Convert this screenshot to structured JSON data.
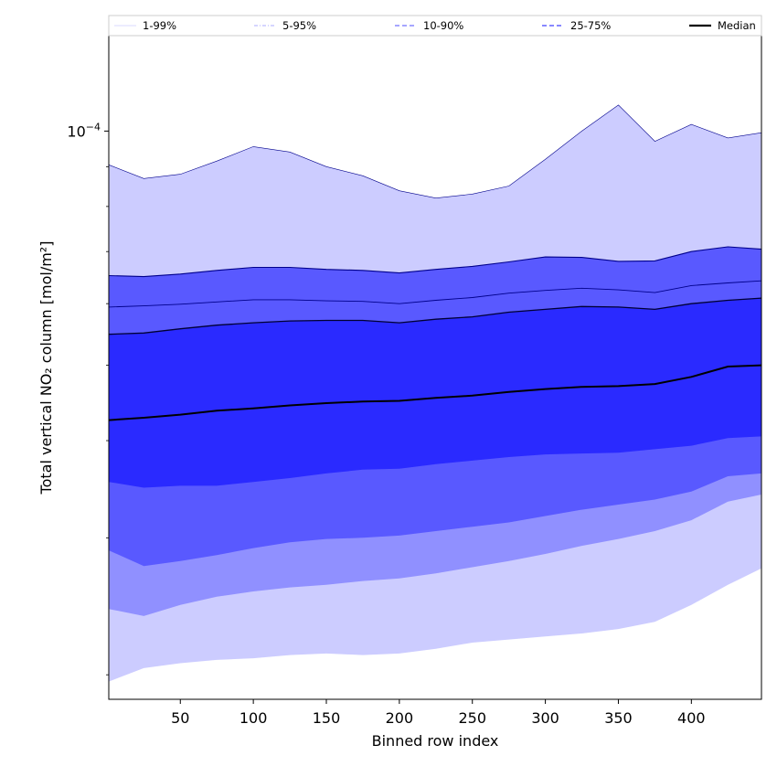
{
  "chart_data": {
    "type": "area",
    "xlabel": "Binned row index",
    "ylabel": "Total vertical NO₂ column [mol/m²]",
    "y_scale": "log",
    "xlim": [
      1,
      448
    ],
    "ylim": [
      1.86e-05,
      0.000133
    ],
    "x_ticks": [
      50,
      100,
      150,
      200,
      250,
      300,
      350,
      400
    ],
    "y_major_tick": {
      "value": 0.0001,
      "label_base": "10",
      "label_exp": "−4"
    },
    "legend_position": "top",
    "colors": {
      "band_1_99": "#ccccff",
      "band_5_95": "#9090ff",
      "band_10_90": "#5959ff",
      "band_25_75": "#2a2aff",
      "median": "#000000",
      "edge": "#00008b"
    },
    "x": [
      1,
      25,
      50,
      75,
      100,
      125,
      150,
      175,
      200,
      225,
      250,
      275,
      300,
      325,
      350,
      375,
      400,
      425,
      448
    ],
    "series": [
      {
        "name": "Median",
        "role": "median",
        "values": [
          4.25e-05,
          4.28e-05,
          4.32e-05,
          4.37e-05,
          4.4e-05,
          4.44e-05,
          4.47e-05,
          4.49e-05,
          4.5e-05,
          4.54e-05,
          4.57e-05,
          4.62e-05,
          4.66e-05,
          4.69e-05,
          4.7e-05,
          4.73e-05,
          4.83e-05,
          4.98e-05,
          5e-05
        ]
      },
      {
        "name": "25-75%",
        "role": "band",
        "lower": [
          3.54e-05,
          3.48e-05,
          3.5e-05,
          3.5e-05,
          3.54e-05,
          3.58e-05,
          3.63e-05,
          3.67e-05,
          3.68e-05,
          3.73e-05,
          3.77e-05,
          3.81e-05,
          3.84e-05,
          3.85e-05,
          3.86e-05,
          3.9e-05,
          3.94e-05,
          4.03e-05,
          4.05e-05
        ],
        "upper": [
          5.48e-05,
          5.5e-05,
          5.57e-05,
          5.63e-05,
          5.67e-05,
          5.7e-05,
          5.71e-05,
          5.71e-05,
          5.67e-05,
          5.73e-05,
          5.77e-05,
          5.85e-05,
          5.9e-05,
          5.95e-05,
          5.94e-05,
          5.9e-05,
          6e-05,
          6.06e-05,
          6.1e-05
        ]
      },
      {
        "name": "10-90%",
        "role": "band",
        "lower": [
          2.89e-05,
          2.76e-05,
          2.8e-05,
          2.85e-05,
          2.91e-05,
          2.96e-05,
          2.99e-05,
          3e-05,
          3.02e-05,
          3.06e-05,
          3.1e-05,
          3.14e-05,
          3.2e-05,
          3.26e-05,
          3.31e-05,
          3.36e-05,
          3.44e-05,
          3.6e-05,
          3.63e-05
        ]
      },
      {
        "name": "5-95%",
        "role": "band",
        "lower": [
          2.43e-05,
          2.38e-05,
          2.46e-05,
          2.52e-05,
          2.56e-05,
          2.59e-05,
          2.61e-05,
          2.64e-05,
          2.66e-05,
          2.7e-05,
          2.75e-05,
          2.8e-05,
          2.86e-05,
          2.93e-05,
          2.99e-05,
          3.06e-05,
          3.16e-05,
          3.34e-05,
          3.41e-05
        ],
        "upper": [
          5.94e-05,
          5.96e-05,
          5.99e-05,
          6.03e-05,
          6.07e-05,
          6.07e-05,
          6.05e-05,
          6.04e-05,
          6e-05,
          6.06e-05,
          6.11e-05,
          6.19e-05,
          6.24e-05,
          6.28e-05,
          6.25e-05,
          6.2e-05,
          6.33e-05,
          6.38e-05,
          6.42e-05
        ]
      },
      {
        "name": "1-99%",
        "role": "band",
        "lower": [
          1.96e-05,
          2.04e-05,
          2.07e-05,
          2.09e-05,
          2.1e-05,
          2.12e-05,
          2.13e-05,
          2.12e-05,
          2.13e-05,
          2.16e-05,
          2.2e-05,
          2.22e-05,
          2.24e-05,
          2.26e-05,
          2.29e-05,
          2.34e-05,
          2.46e-05,
          2.61e-05,
          2.74e-05
        ],
        "upper": [
          9.05e-05,
          8.69e-05,
          8.8e-05,
          9.15e-05,
          9.55e-05,
          9.4e-05,
          9e-05,
          8.76e-05,
          8.38e-05,
          8.2e-05,
          8.3e-05,
          8.5e-05,
          9.2e-05,
          0.0001,
          0.000108,
          9.7e-05,
          0.000102,
          9.8e-05,
          9.95e-05
        ]
      }
    ],
    "band_10_90_upper_note_free": true,
    "band_10_90_upper": [
      6.52e-05,
      6.5e-05,
      6.55e-05,
      6.62e-05,
      6.68e-05,
      6.68e-05,
      6.64e-05,
      6.62e-05,
      6.57e-05,
      6.64e-05,
      6.7e-05,
      6.79e-05,
      6.89e-05,
      6.88e-05,
      6.8e-05,
      6.81e-05,
      7e-05,
      7.1e-05,
      7.05e-05
    ],
    "legend": [
      {
        "label": "1-99%",
        "style": "solid-thin",
        "color": "#ccccff"
      },
      {
        "label": "5-95%",
        "style": "dashdot-thin",
        "color": "#9090ff"
      },
      {
        "label": "10-90%",
        "style": "dashed",
        "color": "#7070ff"
      },
      {
        "label": "25-75%",
        "style": "dashed",
        "color": "#4040ff"
      },
      {
        "label": "Median",
        "style": "solid-thick",
        "color": "#000000"
      }
    ]
  }
}
